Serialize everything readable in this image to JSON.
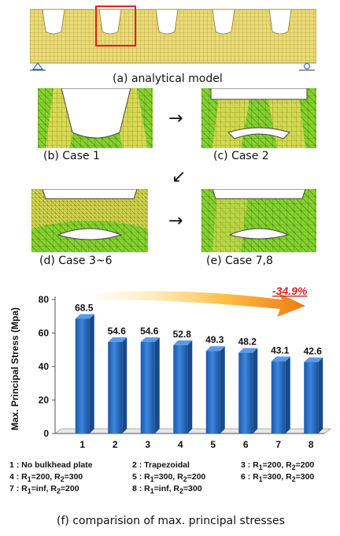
{
  "figure": {
    "caption_a": "(a) analytical model",
    "caption_b": "(b) Case 1",
    "caption_c": "(c) Case 2",
    "caption_d": "(d) Case 3~6",
    "caption_e": "(e) Case 7,8",
    "caption_f": "(f) comparision of max. principal stresses",
    "arrow_glyph": "→",
    "arrow_diag_glyph": "↙",
    "support_left": "A",
    "support_right": "O"
  },
  "legend": {
    "items": [
      {
        "text": "1 : No bulkhead plate"
      },
      {
        "text": "2 : Trapezoidal"
      },
      {
        "text": "3 : R1=200, R2=200"
      },
      {
        "text": "4 : R1=200, R2=300"
      },
      {
        "text": "5 : R1=300, R2=200"
      },
      {
        "text": "6 : R1=300, R2=300"
      },
      {
        "text": "7 : R1=inf, R2=200"
      },
      {
        "text": "8 : R1=inf, R2=300"
      }
    ]
  },
  "colors": {
    "mesh_yellow": "#e8d870",
    "mesh_green": "#7ecf2a",
    "bar_blue": "#2a6fc6",
    "highlight_red": "#e02020",
    "percent_red": "#e02020"
  },
  "chart_data": {
    "type": "bar",
    "categories": [
      "1",
      "2",
      "3",
      "4",
      "5",
      "6",
      "7",
      "8"
    ],
    "values": [
      68.5,
      54.6,
      54.6,
      52.8,
      49.3,
      48.2,
      43.1,
      42.6
    ],
    "data_labels": [
      "68.5",
      "54.6",
      "54.6",
      "52.8",
      "49.3",
      "48.2",
      "43.1",
      "42.6"
    ],
    "ylabel": "Max. Principal Stress (Mpa)",
    "xlabel": "",
    "yticks": [
      "0",
      "20",
      "40",
      "60",
      "80"
    ],
    "ylim": [
      0,
      80
    ],
    "annotation": "-34.9%",
    "grid": false,
    "bar_style": "3d"
  }
}
